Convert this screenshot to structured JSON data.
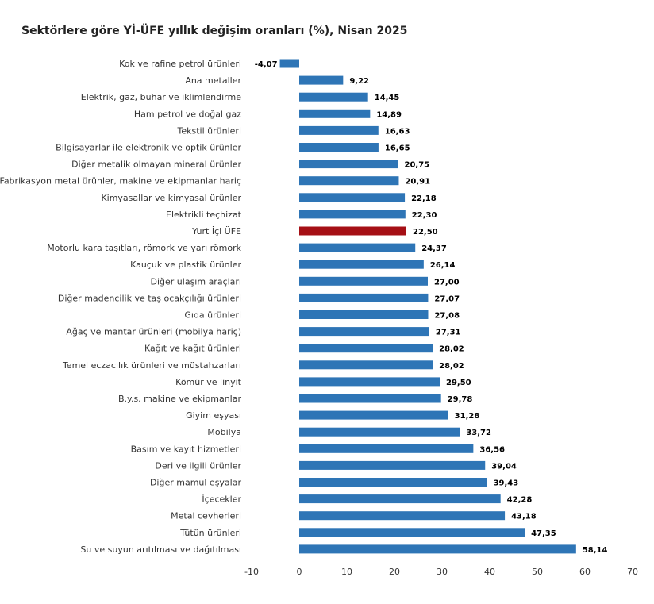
{
  "chart_data": {
    "type": "bar",
    "orientation": "horizontal",
    "title": "Sektörlere göre Yİ-ÜFE yıllık değişim oranları (%), Nisan 2025",
    "xlabel": "",
    "ylabel": "",
    "xlim": [
      -10,
      70
    ],
    "xticks": [
      "-10",
      "0",
      "10",
      "20",
      "30",
      "40",
      "50",
      "60",
      "70"
    ],
    "grid": false,
    "legend": "none",
    "bar_color": "#2e75b6",
    "highlight_color": "#a50f15",
    "highlight_category": "Yurt İçi ÜFE",
    "categories": [
      "Kok ve rafine petrol ürünleri",
      "Ana metaller",
      "Elektrik, gaz, buhar ve iklimlendirme",
      "Ham petrol ve doğal gaz",
      "Tekstil ürünleri",
      "Bilgisayarlar ile elektronik ve optik ürünler",
      "Diğer metalik olmayan mineral ürünler",
      "Fabrikasyon metal ürünler, makine ve ekipmanlar hariç",
      "Kimyasallar ve kimyasal ürünler",
      "Elektrikli teçhizat",
      "Yurt İçi ÜFE",
      "Motorlu kara taşıtları, römork ve yarı römork",
      "Kauçuk ve plastik ürünler",
      "Diğer ulaşım araçları",
      "Diğer madencilik ve taş ocakçılığı ürünleri",
      "Gıda ürünleri",
      "Ağaç ve mantar ürünleri (mobilya hariç)",
      "Kağıt ve kağıt ürünleri",
      "Temel eczacılık ürünleri ve müstahzarları",
      "Kömür ve linyit",
      "B.y.s. makine ve ekipmanlar",
      "Giyim eşyası",
      "Mobilya",
      "Basım ve kayıt hizmetleri",
      "Deri ve ilgili ürünler",
      "Diğer mamul eşyalar",
      "İçecekler",
      "Metal cevherleri",
      "Tütün ürünleri",
      "Su ve suyun arıtılması ve dağıtılması"
    ],
    "values": [
      -4.07,
      9.22,
      14.45,
      14.89,
      16.63,
      16.65,
      20.75,
      20.91,
      22.18,
      22.3,
      22.5,
      24.37,
      26.14,
      27.0,
      27.07,
      27.08,
      27.31,
      28.02,
      28.02,
      29.5,
      29.78,
      31.28,
      33.72,
      36.56,
      39.04,
      39.43,
      42.28,
      43.18,
      47.35,
      58.14
    ],
    "value_labels": [
      "-4,07",
      "9,22",
      "14,45",
      "14,89",
      "16,63",
      "16,65",
      "20,75",
      "20,91",
      "22,18",
      "22,30",
      "22,50",
      "24,37",
      "26,14",
      "27,00",
      "27,07",
      "27,08",
      "27,31",
      "28,02",
      "28,02",
      "29,50",
      "29,78",
      "31,28",
      "33,72",
      "36,56",
      "39,04",
      "39,43",
      "42,28",
      "43,18",
      "47,35",
      "58,14"
    ]
  }
}
